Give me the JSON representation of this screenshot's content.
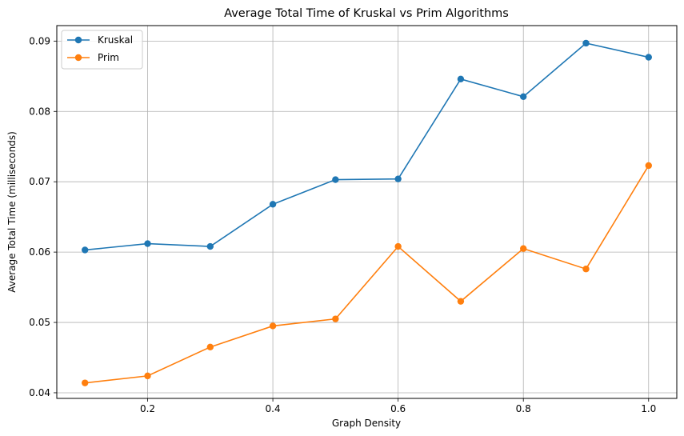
{
  "chart_data": {
    "type": "line",
    "title": "Average Total Time of Kruskal vs Prim Algorithms",
    "xlabel": "Graph Density",
    "ylabel": "Average Total Time (milliseconds)",
    "xlim": [
      0.055,
      1.045
    ],
    "ylim": [
      0.0392,
      0.0922
    ],
    "xticks": [
      0.2,
      0.4,
      0.6,
      0.8,
      1.0
    ],
    "xtick_labels": [
      "0.2",
      "0.4",
      "0.6",
      "0.8",
      "1.0"
    ],
    "yticks": [
      0.04,
      0.05,
      0.06,
      0.07,
      0.08,
      0.09
    ],
    "ytick_labels": [
      "0.04",
      "0.05",
      "0.06",
      "0.07",
      "0.08",
      "0.09"
    ],
    "grid": true,
    "legend_position": "top-left",
    "x": [
      0.1,
      0.2,
      0.3,
      0.4,
      0.5,
      0.6,
      0.7,
      0.8,
      0.9,
      1.0
    ],
    "series": [
      {
        "name": "Kruskal",
        "color": "#1f77b4",
        "values": [
          0.0603,
          0.0612,
          0.0608,
          0.0668,
          0.0703,
          0.0704,
          0.0846,
          0.0821,
          0.0897,
          0.0877
        ]
      },
      {
        "name": "Prim",
        "color": "#ff7f0e",
        "values": [
          0.0414,
          0.0424,
          0.0465,
          0.0495,
          0.0505,
          0.0608,
          0.053,
          0.0605,
          0.0576,
          0.0723
        ]
      }
    ]
  }
}
